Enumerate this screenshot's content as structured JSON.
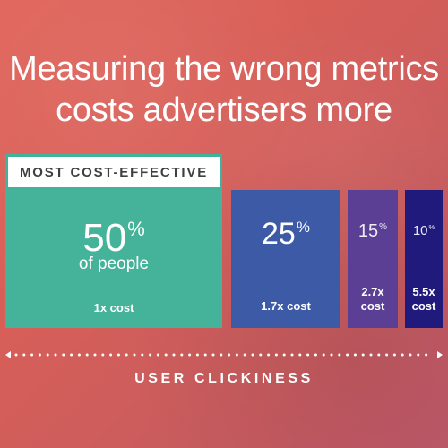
{
  "title": {
    "line1": "Measuring the wrong metrics",
    "line2": "costs advertisers more"
  },
  "badge": "MOST COST-EFFECTIVE",
  "axis_label": "USER CLICKINESS",
  "colors": {
    "teal": "#45b39a",
    "blue": "#3c5aa6",
    "purple": "#5b3f95",
    "navy": "#201a7c",
    "background": "#d8605a"
  },
  "chart_data": {
    "type": "bar",
    "title": "Measuring the wrong metrics costs advertisers more",
    "xlabel": "USER CLICKINESS",
    "categories": [
      "50%",
      "25%",
      "15%",
      "10%"
    ],
    "values": [
      50,
      25,
      15,
      10
    ],
    "unit": "%",
    "value_suffix": "%",
    "first_bar_sublabel": "of people",
    "cost_labels": [
      "1x cost",
      "1.7x cost",
      "2.7x cost",
      "5.5x cost"
    ],
    "cost_multipliers": [
      1,
      1.7,
      2.7,
      5.5
    ],
    "highlight": "MOST COST-EFFECTIVE",
    "bar_colors": [
      "#45b39a",
      "#3c5aa6",
      "#5b3f95",
      "#201a7c"
    ]
  }
}
